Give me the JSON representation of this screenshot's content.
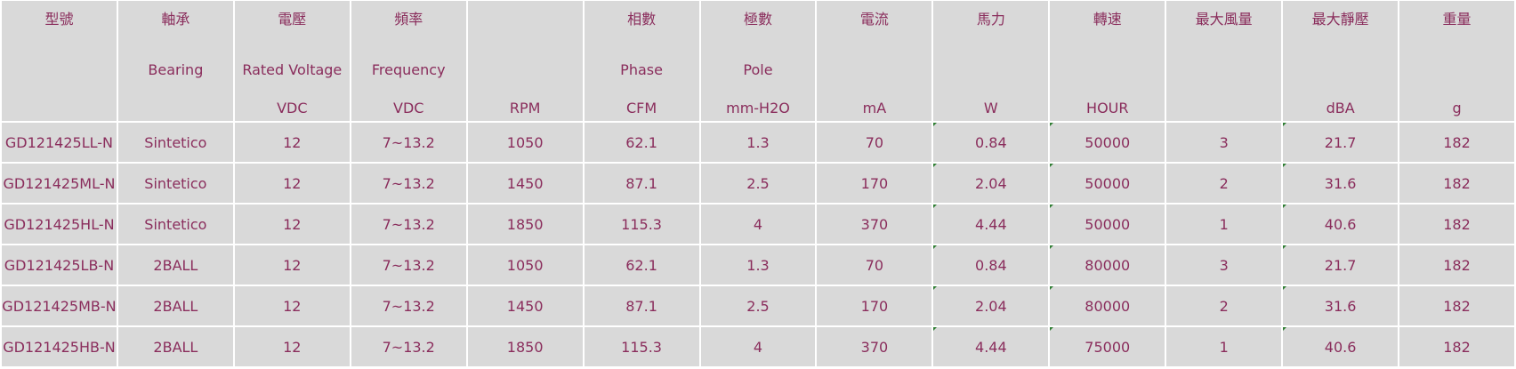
{
  "colors": {
    "text": "#8a2d5c",
    "cell_bg": "#d9d9d9",
    "grid": "#ffffff",
    "comment_marker": "#2e7d32"
  },
  "headers": [
    {
      "zh": "型號",
      "en": "",
      "unit": ""
    },
    {
      "zh": "軸承",
      "en": "Bearing",
      "unit": ""
    },
    {
      "zh": "電壓",
      "en": "Rated Voltage",
      "unit": "VDC"
    },
    {
      "zh": "頻率",
      "en": "Frequency",
      "unit": "VDC"
    },
    {
      "zh": "",
      "en": "",
      "unit": "RPM"
    },
    {
      "zh": "相數",
      "en": "Phase",
      "unit": "CFM"
    },
    {
      "zh": "極數",
      "en": "Pole",
      "unit": "mm-H2O"
    },
    {
      "zh": "電流",
      "en": "",
      "unit": "mA"
    },
    {
      "zh": "馬力",
      "en": "",
      "unit": "W"
    },
    {
      "zh": "轉速",
      "en": "",
      "unit": "HOUR"
    },
    {
      "zh": "最大風量",
      "en": "",
      "unit": ""
    },
    {
      "zh": "最大靜壓",
      "en": "",
      "unit": "dBA"
    },
    {
      "zh": "重量",
      "en": "",
      "unit": "g"
    }
  ],
  "marked_columns": [
    8,
    9,
    11
  ],
  "rows": [
    [
      "GD121425LL-N",
      "Sintetico",
      "12",
      "7~13.2",
      "1050",
      "62.1",
      "1.3",
      "70",
      "0.84",
      "50000",
      "3",
      "21.7",
      "182"
    ],
    [
      "GD121425ML-N",
      "Sintetico",
      "12",
      "7~13.2",
      "1450",
      "87.1",
      "2.5",
      "170",
      "2.04",
      "50000",
      "2",
      "31.6",
      "182"
    ],
    [
      "GD121425HL-N",
      "Sintetico",
      "12",
      "7~13.2",
      "1850",
      "115.3",
      "4",
      "370",
      "4.44",
      "50000",
      "1",
      "40.6",
      "182"
    ],
    [
      "GD121425LB-N",
      "2BALL",
      "12",
      "7~13.2",
      "1050",
      "62.1",
      "1.3",
      "70",
      "0.84",
      "80000",
      "3",
      "21.7",
      "182"
    ],
    [
      "GD121425MB-N",
      "2BALL",
      "12",
      "7~13.2",
      "1450",
      "87.1",
      "2.5",
      "170",
      "2.04",
      "80000",
      "2",
      "31.6",
      "182"
    ],
    [
      "GD121425HB-N",
      "2BALL",
      "12",
      "7~13.2",
      "1850",
      "115.3",
      "4",
      "370",
      "4.44",
      "75000",
      "1",
      "40.6",
      "182"
    ]
  ]
}
